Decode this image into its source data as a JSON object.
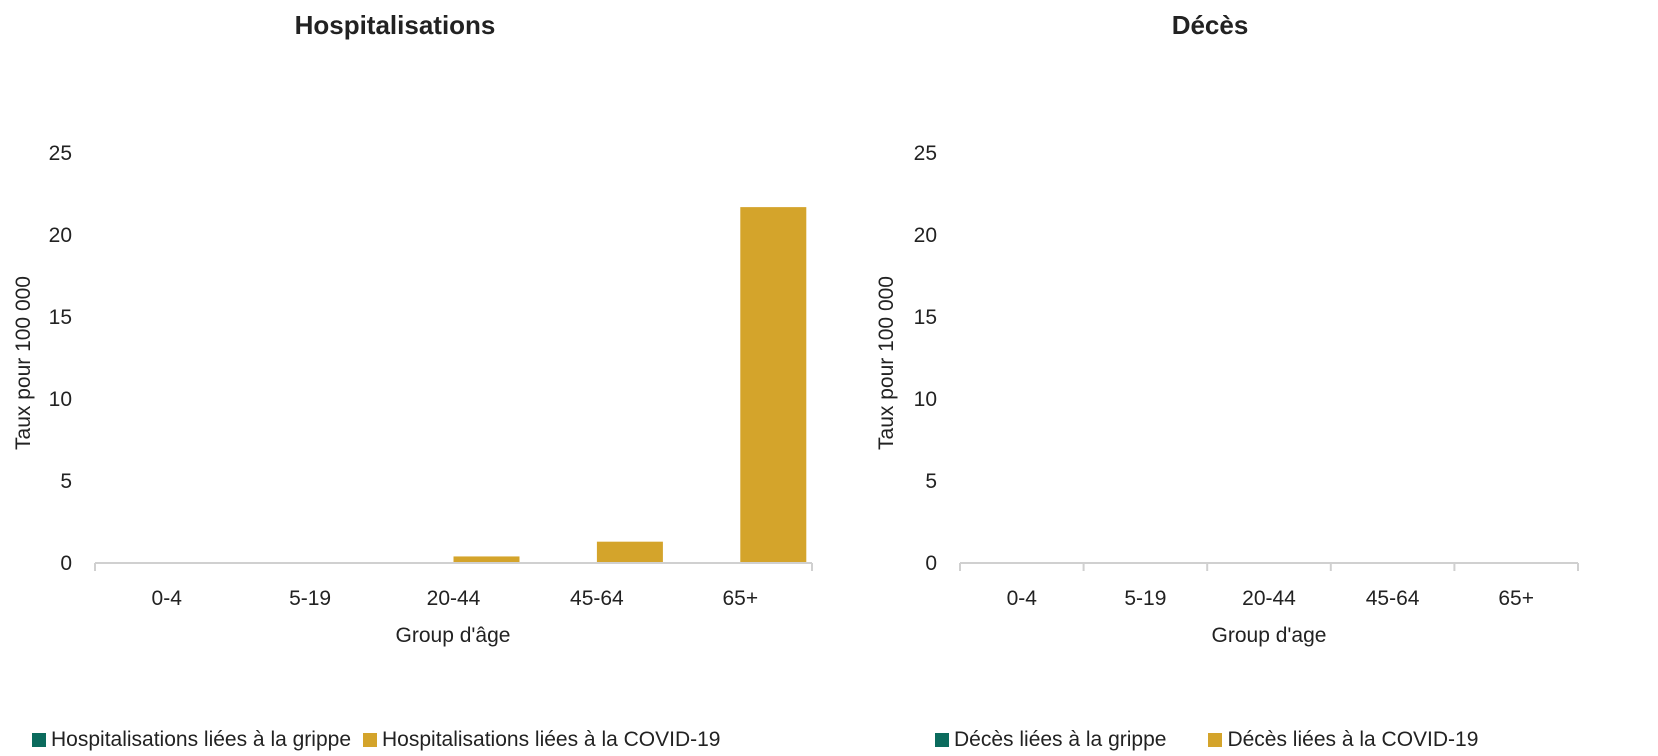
{
  "colors": {
    "grippe": "#0b6b5d",
    "covid": "#d4a42b",
    "axis": "#d0d0d0"
  },
  "chart_data": [
    {
      "type": "bar",
      "title": "Hospitalisations",
      "xlabel": "Group d'âge",
      "ylabel": "Taux pour 100 000",
      "ylim": [
        0,
        25
      ],
      "yticks": [
        "0",
        "5",
        "10",
        "15",
        "20",
        "25"
      ],
      "categories": [
        "0-4",
        "5-19",
        "20-44",
        "45-64",
        "65+"
      ],
      "grid": false,
      "legend_position": "bottom",
      "series": [
        {
          "name": "Hospitalisations liées à la grippe",
          "values": [
            0,
            0,
            0,
            0,
            0
          ]
        },
        {
          "name": "Hospitalisations liées à la COVID-19",
          "values": [
            0,
            0,
            0.4,
            1.3,
            21.7
          ]
        }
      ]
    },
    {
      "type": "bar",
      "title": "Décès",
      "xlabel": "Group d'age",
      "ylabel": "Taux pour 100 000",
      "ylim": [
        0,
        25
      ],
      "yticks": [
        "0",
        "5",
        "10",
        "15",
        "20",
        "25"
      ],
      "categories": [
        "0-4",
        "5-19",
        "20-44",
        "45-64",
        "65+"
      ],
      "grid": false,
      "legend_position": "bottom",
      "series": [
        {
          "name": "Décès liées à la grippe",
          "values": [
            0,
            0,
            0,
            0,
            0
          ]
        },
        {
          "name": "Décès liées à la COVID-19",
          "values": [
            0,
            0,
            0,
            0,
            0
          ]
        }
      ]
    }
  ]
}
